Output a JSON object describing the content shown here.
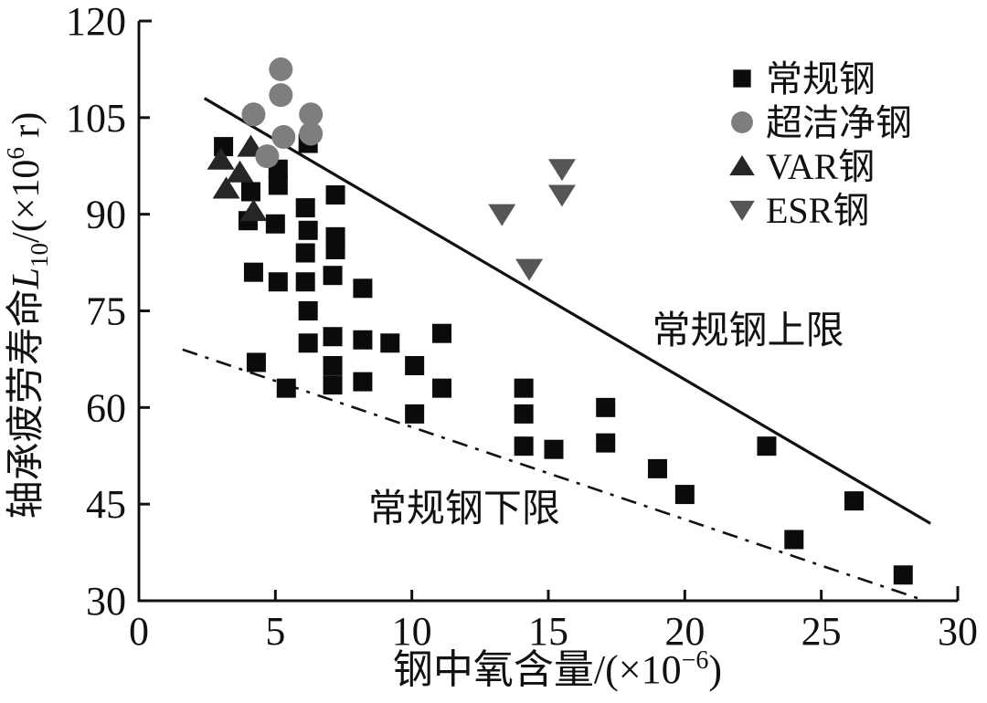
{
  "chart_data": {
    "type": "scatter",
    "title": "",
    "xlabel": "钢中氧含量/(×10⁻⁶)",
    "ylabel": "轴承疲劳寿命L₁₀/(×10⁶ r)",
    "xlabel_parts": [
      {
        "t": "钢中氧含量/(×10",
        "style": "normal"
      },
      {
        "t": "−6",
        "style": "sup"
      },
      {
        "t": ")",
        "style": "normal"
      }
    ],
    "ylabel_parts": [
      {
        "t": "轴承疲劳寿命",
        "style": "normal"
      },
      {
        "t": "L",
        "style": "italic"
      },
      {
        "t": "10",
        "style": "sub"
      },
      {
        "t": "/(×10",
        "style": "normal"
      },
      {
        "t": "6",
        "style": "sup"
      },
      {
        "t": " r)",
        "style": "normal"
      }
    ],
    "xlim": [
      0,
      30
    ],
    "ylim": [
      30,
      120
    ],
    "x_ticks": [
      0,
      5,
      10,
      15,
      20,
      25,
      30
    ],
    "y_ticks": [
      30,
      45,
      60,
      75,
      90,
      105,
      120
    ],
    "grid": false,
    "legend_position": "top-right",
    "axis_color": "#111111",
    "series": [
      {
        "name": "常规钢",
        "marker": "square",
        "color": "#0b0b0b",
        "points": [
          [
            3.1,
            100.5
          ],
          [
            4.1,
            93.5
          ],
          [
            4.0,
            89
          ],
          [
            4.2,
            81
          ],
          [
            4.3,
            67
          ],
          [
            5.1,
            97
          ],
          [
            5.1,
            94.5
          ],
          [
            5.0,
            88.5
          ],
          [
            5.1,
            79.5
          ],
          [
            5.4,
            63
          ],
          [
            6.2,
            101
          ],
          [
            6.1,
            91
          ],
          [
            6.2,
            87.5
          ],
          [
            6.1,
            84
          ],
          [
            6.1,
            79.5
          ],
          [
            6.2,
            75
          ],
          [
            6.2,
            70
          ],
          [
            7.2,
            93
          ],
          [
            7.2,
            86.5
          ],
          [
            7.2,
            84.5
          ],
          [
            7.1,
            80.5
          ],
          [
            7.1,
            71
          ],
          [
            7.1,
            66.5
          ],
          [
            7.1,
            63.5
          ],
          [
            8.2,
            78.5
          ],
          [
            8.2,
            70.5
          ],
          [
            8.2,
            64
          ],
          [
            9.2,
            70
          ],
          [
            10.1,
            66.5
          ],
          [
            10.1,
            59
          ],
          [
            11.1,
            71.5
          ],
          [
            11.1,
            63
          ],
          [
            14.1,
            63
          ],
          [
            14.1,
            59
          ],
          [
            14.1,
            54
          ],
          [
            15.2,
            53.5
          ],
          [
            17.1,
            60
          ],
          [
            17.1,
            54.5
          ],
          [
            19.0,
            50.5
          ],
          [
            20.0,
            46.5
          ],
          [
            23.0,
            54
          ],
          [
            24.0,
            39.5
          ],
          [
            26.2,
            45.5
          ],
          [
            28.0,
            34
          ]
        ]
      },
      {
        "name": "超洁净钢",
        "marker": "circle",
        "color": "#7e7e7e",
        "points": [
          [
            5.2,
            112.5
          ],
          [
            5.2,
            108.5
          ],
          [
            4.2,
            105.5
          ],
          [
            6.3,
            105.5
          ],
          [
            5.3,
            102
          ],
          [
            6.3,
            102.5
          ],
          [
            4.7,
            99
          ]
        ]
      },
      {
        "name": "VAR钢",
        "marker": "triangle-up",
        "color": "#262626",
        "points": [
          [
            3.0,
            98.5
          ],
          [
            4.1,
            100.5
          ],
          [
            3.7,
            96.5
          ],
          [
            3.2,
            94
          ],
          [
            4.2,
            90.5
          ]
        ]
      },
      {
        "name": "ESR钢",
        "marker": "triangle-down",
        "color": "#565656",
        "points": [
          [
            13.3,
            90
          ],
          [
            14.3,
            81.5
          ],
          [
            15.5,
            97
          ],
          [
            15.5,
            93
          ]
        ]
      }
    ],
    "lines": [
      {
        "name": "常规钢上限",
        "style": "solid",
        "from": [
          2.4,
          108
        ],
        "to": [
          29.0,
          42
        ],
        "color": "#111111",
        "width": 3.2
      },
      {
        "name": "常规钢下限",
        "style": "dash-dot",
        "from": [
          1.6,
          69
        ],
        "to": [
          28.6,
          30.3
        ],
        "color": "#111111",
        "width": 2.6
      }
    ],
    "annotations": [
      {
        "text": "常规钢上限",
        "x": 18.8,
        "y": 70.0,
        "font_size": 42
      },
      {
        "text": "常规钢下限",
        "x": 8.4,
        "y": 42.3,
        "font_size": 42
      }
    ]
  }
}
